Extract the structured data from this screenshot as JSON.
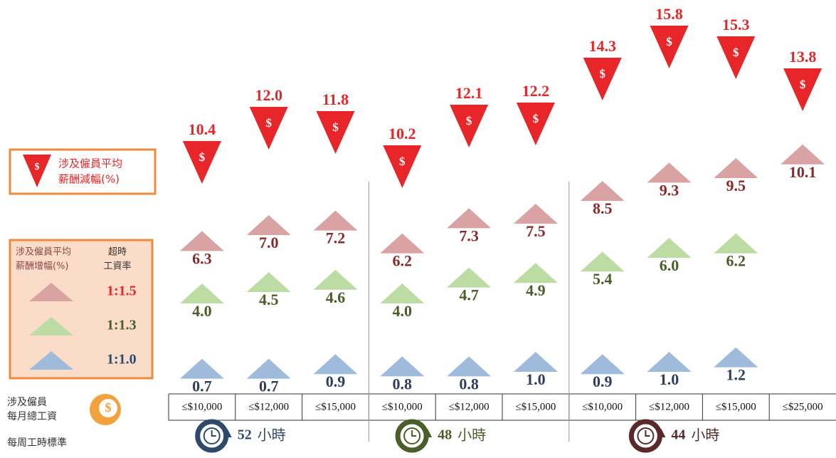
{
  "chart_data": {
    "type": "triangle-infographic",
    "categories": [
      "≤$10,000",
      "≤$12,000",
      "≤$15,000",
      "≤$10,000",
      "≤$12,000",
      "≤$15,000",
      "≤$10,000",
      "≤$12,000",
      "≤$15,000",
      "≤$25,000"
    ],
    "groups": [
      {
        "hours": "52",
        "unit": "小時",
        "size": 3,
        "color": "#2e4a6b"
      },
      {
        "hours": "48",
        "unit": "小時",
        "size": 3,
        "color": "#4a5e2a"
      },
      {
        "hours": "44",
        "unit": "小時",
        "size": 4,
        "color": "#5a2a2a"
      }
    ],
    "decrease": {
      "legend": [
        "涉及僱員平均",
        "薪酬減幅(%)"
      ],
      "symbol": "$",
      "color": "#e8262a",
      "values": [
        10.4,
        12.0,
        11.8,
        10.2,
        12.1,
        12.2,
        14.3,
        15.8,
        15.3,
        13.8
      ],
      "value_labels": [
        "10.4",
        "12.0",
        "11.8",
        "10.2",
        "12.1",
        "12.2",
        "14.3",
        "15.8",
        "15.3",
        "13.8"
      ]
    },
    "increase_legend": [
      "涉及僱員平均",
      "薪酬增幅(%)"
    ],
    "rate_header": [
      "超時",
      "工資率"
    ],
    "series": [
      {
        "name": "1:1.5",
        "color": "#d9a3a3",
        "label_color": "#8b2a2a",
        "values": [
          6.3,
          7.0,
          7.2,
          6.2,
          7.3,
          7.5,
          8.5,
          9.3,
          9.5,
          10.1
        ],
        "value_labels": [
          "6.3",
          "7.0",
          "7.2",
          "6.2",
          "7.3",
          "7.5",
          "8.5",
          "9.3",
          "9.5",
          "10.1"
        ]
      },
      {
        "name": "1:1.3",
        "color": "#bcdca4",
        "label_color": "#4a5e2a",
        "values": [
          4.0,
          4.5,
          4.6,
          4.0,
          4.7,
          4.9,
          5.4,
          6.0,
          6.2,
          null
        ],
        "value_labels": [
          "4.0",
          "4.5",
          "4.6",
          "4.0",
          "4.7",
          "4.9",
          "5.4",
          "6.0",
          "6.2",
          null
        ]
      },
      {
        "name": "1:1.0",
        "color": "#9fbbdb",
        "label_color": "#2e3e5c",
        "values": [
          0.7,
          0.7,
          0.9,
          0.8,
          0.8,
          1.0,
          0.9,
          1.0,
          1.2,
          null
        ],
        "value_labels": [
          "0.7",
          "0.7",
          "0.9",
          "0.8",
          "0.8",
          "1.0",
          "0.9",
          "1.0",
          "1.2",
          null
        ]
      }
    ],
    "legend_name_colors": [
      "#e8262a",
      "#4a5e2a",
      "#2e4a6b"
    ],
    "wage_label": [
      "涉及僱員",
      "每月總工資"
    ],
    "hours_label": "每周工時標準"
  }
}
